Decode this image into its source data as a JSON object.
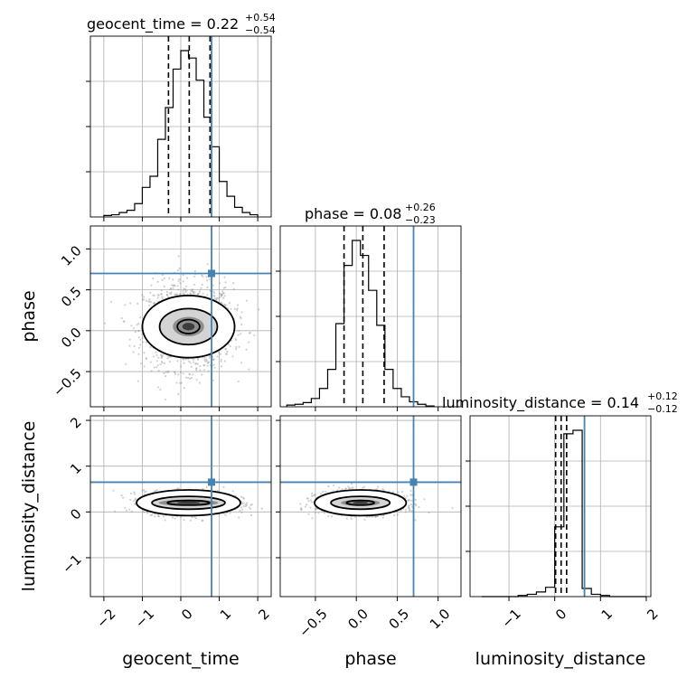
{
  "chart_data": {
    "type": "corner",
    "parameters": [
      "geocent_time",
      "phase",
      "luminosity_distance"
    ],
    "truths": [
      0.8,
      0.7,
      0.65
    ],
    "truth_color": "#4682b4",
    "grid": true,
    "axes": {
      "geocent_time": {
        "range": [
          -2.35,
          2.35
        ],
        "ticks": [
          -2,
          -1,
          0,
          1,
          2
        ],
        "tick_labels": [
          "−2",
          "−1",
          "0",
          "1",
          "2"
        ]
      },
      "phase": {
        "range": [
          -0.93,
          1.28
        ],
        "ticks": [
          -0.5,
          0.0,
          0.5,
          1.0
        ],
        "tick_labels": [
          "−0.5",
          "0.0",
          "0.5",
          "1.0"
        ]
      },
      "luminosity_distance": {
        "range": [
          -1.85,
          2.1
        ],
        "ticks": [
          -1,
          0,
          1,
          2
        ],
        "tick_labels": [
          "−1",
          "0",
          "1",
          "2"
        ]
      }
    },
    "row_tick_labels": {
      "phase": [
        "−0.5",
        "0.0",
        "0.5",
        "1.0"
      ],
      "luminosity_distance": [
        "−1",
        "0",
        "1",
        "2"
      ]
    },
    "titles": [
      {
        "param": "geocent_time",
        "text": "geocent_time = 0.22",
        "plus": "+0.54",
        "minus": "−0.54"
      },
      {
        "param": "phase",
        "text": "phase = 0.08",
        "plus": "+0.26",
        "minus": "−0.23"
      },
      {
        "param": "luminosity_distance",
        "text": "luminosity_distance = 0.14",
        "plus": "+0.12",
        "minus": "−0.12"
      }
    ],
    "quantiles": {
      "geocent_time": [
        -0.32,
        0.22,
        0.76
      ],
      "phase": [
        -0.15,
        0.08,
        0.34
      ],
      "luminosity_distance": [
        0.02,
        0.14,
        0.26
      ]
    },
    "histograms": {
      "geocent_time": {
        "bin_start": -2.0,
        "bin_width": 0.2,
        "counts": [
          2,
          3,
          6,
          9,
          18,
          40,
          55,
          105,
          148,
          200,
          225,
          215,
          185,
          135,
          95,
          48,
          28,
          13,
          6,
          3
        ]
      },
      "phase": {
        "bin_start": -0.85,
        "bin_width": 0.1,
        "counts": [
          2,
          3,
          5,
          10,
          22,
          45,
          100,
          170,
          200,
          182,
          140,
          98,
          45,
          22,
          12,
          6,
          3,
          1
        ]
      },
      "luminosity_distance": {
        "bin_start": -1.6,
        "bin_width": 0.2,
        "counts": [
          0,
          0,
          0,
          0,
          1,
          2,
          4,
          8,
          60,
          140,
          143,
          7,
          2,
          1,
          0,
          0,
          0,
          0
        ]
      }
    },
    "density": {
      "phase_vs_geocent_time": {
        "center": [
          0.2,
          0.05
        ],
        "contours": [
          {
            "rx": 0.29,
            "ry": 0.085
          },
          {
            "rx": 0.75,
            "ry": 0.22
          },
          {
            "rx": 1.2,
            "ry": 0.38
          }
        ],
        "spread": [
          0.55,
          0.25
        ]
      },
      "luminosity_distance_vs_geocent_time": {
        "center": [
          0.2,
          0.2
        ],
        "contours": [
          {
            "rx": 0.55,
            "ry": 0.05
          },
          {
            "rx": 0.95,
            "ry": 0.14
          },
          {
            "rx": 1.35,
            "ry": 0.28
          }
        ],
        "spread": [
          0.55,
          0.12
        ]
      },
      "luminosity_distance_vs_phase": {
        "center": [
          0.05,
          0.2
        ],
        "contours": [
          {
            "rx": 0.17,
            "ry": 0.05
          },
          {
            "rx": 0.36,
            "ry": 0.14
          },
          {
            "rx": 0.56,
            "ry": 0.28
          }
        ],
        "spread": [
          0.25,
          0.12
        ]
      }
    }
  }
}
